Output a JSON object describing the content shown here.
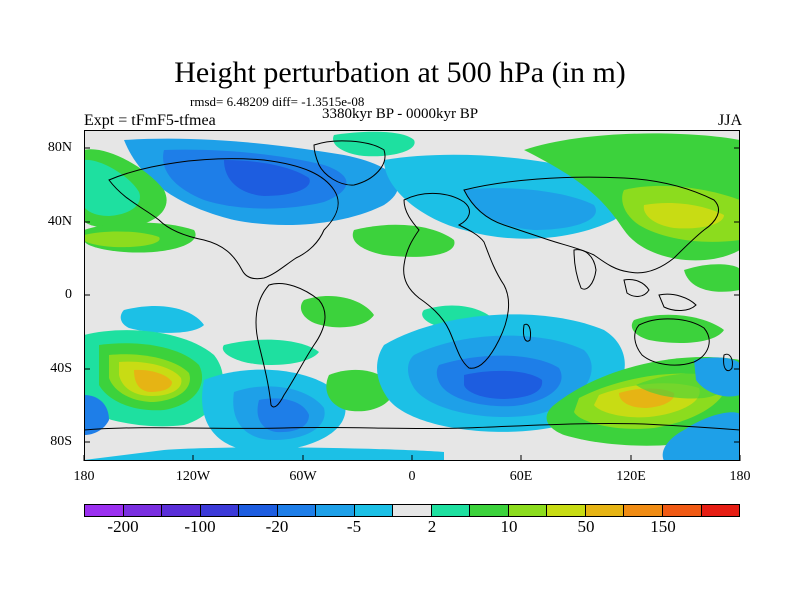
{
  "title": "Height perturbation at 500 hPa (in m)",
  "stats": "rmsd= 6.48209 diff= -1.3515e-08",
  "subtitle": "3380kyr BP - 0000kyr BP",
  "left_label": "Expt = tFmF5-tfmea",
  "right_label": "JJA",
  "lat_labels": [
    "80N",
    "40N",
    "0",
    "40S",
    "80S"
  ],
  "lon_labels": [
    "180",
    "120W",
    "60W",
    "0",
    "60E",
    "120E",
    "180"
  ],
  "colorbar": {
    "colors": [
      "#9b30f0",
      "#7a2fe0",
      "#5a2fd8",
      "#3c3ad8",
      "#1d5de0",
      "#1e7ee8",
      "#1ea0e8",
      "#1cc0e6",
      "#e6e6e6",
      "#1ee0a0",
      "#3cd23c",
      "#8cdc1e",
      "#c8dc14",
      "#e6b414",
      "#f08c14",
      "#f05a14",
      "#e61e14"
    ],
    "labels": [
      "-200",
      "-100",
      "-20",
      "-5",
      "2",
      "10",
      "50",
      "150"
    ]
  },
  "colors": {
    "background": "#e6e6e6",
    "coast": "#000000"
  }
}
